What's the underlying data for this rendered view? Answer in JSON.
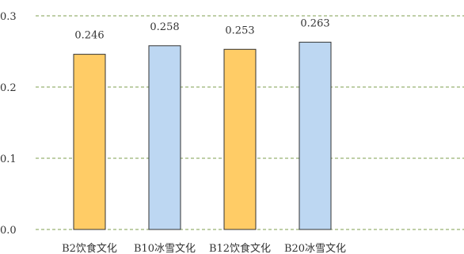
{
  "chart_data": {
    "type": "bar",
    "title": "",
    "xlabel": "",
    "ylabel": "",
    "categories": [
      "B2饮食文化",
      "B10冰雪文化",
      "B12饮食文化",
      "B20冰雪文化"
    ],
    "values": [
      0.246,
      0.258,
      0.253,
      0.263
    ],
    "data_labels": [
      "0.246",
      "0.258",
      "0.253",
      "0.263"
    ],
    "bar_colors": [
      "#FFCC66",
      "#BDD7F2",
      "#FFCC66",
      "#BDD7F2"
    ],
    "bar_edge_color": "#333333",
    "ylim": [
      0,
      0.3
    ],
    "yticks": [
      0,
      0.1,
      0.2,
      0.3
    ],
    "ytick_labels": [
      "0.0",
      "0.1",
      "0.2",
      "0.3"
    ],
    "grid": true,
    "grid_style": "dashed",
    "grid_color": "#7F9F4F",
    "legend": "none"
  }
}
